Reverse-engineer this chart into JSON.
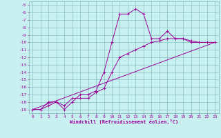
{
  "xlabel": "Windchill (Refroidissement éolien,°C)",
  "bg_color": "#c8f0f0",
  "grid_color": "#7ab8b8",
  "line_color": "#990099",
  "xlim": [
    -0.5,
    23.5
  ],
  "ylim": [
    -19.5,
    -4.5
  ],
  "xticks": [
    0,
    1,
    2,
    3,
    4,
    5,
    6,
    7,
    8,
    9,
    10,
    11,
    12,
    13,
    14,
    15,
    16,
    17,
    18,
    19,
    20,
    21,
    22,
    23
  ],
  "yticks": [
    -5,
    -6,
    -7,
    -8,
    -9,
    -10,
    -11,
    -12,
    -13,
    -14,
    -15,
    -16,
    -17,
    -18,
    -19
  ],
  "line1_x": [
    0,
    1,
    2,
    3,
    4,
    5,
    6,
    7,
    8,
    9,
    10,
    11,
    12,
    13,
    14,
    15,
    16,
    17,
    18,
    19,
    20,
    21,
    22,
    23
  ],
  "line1_y": [
    -19,
    -19,
    -18,
    -18,
    -19,
    -18,
    -17,
    -17,
    -16.5,
    -14,
    -10,
    -6.2,
    -6.2,
    -5.5,
    -6.2,
    -9.5,
    -9.5,
    -8.5,
    -9.5,
    -9.5,
    -10,
    -10,
    -10,
    -10
  ],
  "line2_x": [
    0,
    1,
    2,
    3,
    4,
    5,
    6,
    7,
    8,
    9,
    10,
    11,
    12,
    13,
    14,
    15,
    16,
    17,
    18,
    19,
    20,
    21,
    22,
    23
  ],
  "line2_y": [
    -19,
    -19,
    -18.5,
    -18,
    -18.5,
    -17.5,
    -17.5,
    -17.5,
    -16.7,
    -16.2,
    -14,
    -12,
    -11.5,
    -11,
    -10.5,
    -10,
    -9.8,
    -9.5,
    -9.5,
    -9.5,
    -9.8,
    -10,
    -10,
    -10
  ],
  "line3_x": [
    0,
    23
  ],
  "line3_y": [
    -19,
    -10
  ],
  "tick_fontsize": 4.5,
  "xlabel_fontsize": 5.0,
  "marker_size": 2.5,
  "lw": 0.7
}
